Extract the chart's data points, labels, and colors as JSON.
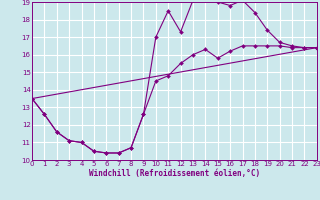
{
  "xlabel": "Windchill (Refroidissement éolien,°C)",
  "bg_color": "#cce8ec",
  "line_color": "#800080",
  "grid_color": "#ffffff",
  "xmin": 0,
  "xmax": 23,
  "ymin": 10,
  "ymax": 19,
  "line1_x": [
    0,
    1,
    2,
    3,
    4,
    5,
    6,
    7,
    8,
    9,
    10,
    11,
    12,
    13,
    14,
    15,
    16,
    17,
    18,
    19,
    20,
    21,
    22,
    23
  ],
  "line1_y": [
    13.5,
    12.6,
    11.6,
    11.1,
    11.0,
    10.5,
    10.4,
    10.4,
    10.7,
    12.6,
    17.0,
    18.5,
    17.3,
    19.1,
    19.3,
    19.0,
    18.8,
    19.1,
    18.4,
    17.4,
    16.7,
    16.5,
    16.4,
    16.4
  ],
  "line2_x": [
    0,
    1,
    2,
    3,
    4,
    5,
    6,
    7,
    8,
    9,
    10,
    11,
    12,
    13,
    14,
    15,
    16,
    17,
    18,
    19,
    20,
    21,
    22,
    23
  ],
  "line2_y": [
    13.5,
    12.6,
    11.6,
    11.1,
    11.0,
    10.5,
    10.4,
    10.4,
    10.7,
    12.6,
    14.5,
    14.8,
    15.5,
    16.0,
    16.3,
    15.8,
    16.2,
    16.5,
    16.5,
    16.5,
    16.5,
    16.4,
    16.4,
    16.4
  ],
  "line3_x": [
    0,
    23
  ],
  "line3_y": [
    13.5,
    16.4
  ],
  "xticks": [
    0,
    1,
    2,
    3,
    4,
    5,
    6,
    7,
    8,
    9,
    10,
    11,
    12,
    13,
    14,
    15,
    16,
    17,
    18,
    19,
    20,
    21,
    22,
    23
  ],
  "yticks": [
    10,
    11,
    12,
    13,
    14,
    15,
    16,
    17,
    18,
    19
  ],
  "xlabel_fontsize": 5.5,
  "tick_fontsize": 5.0,
  "lw": 0.8,
  "ms": 2.0
}
